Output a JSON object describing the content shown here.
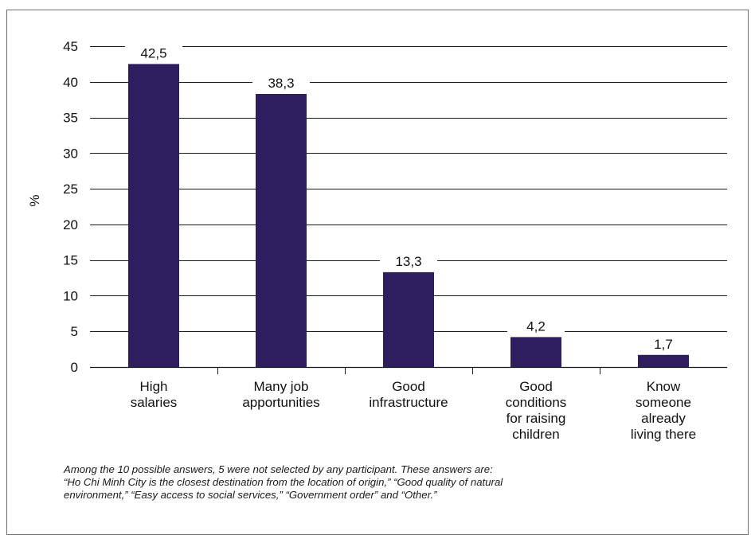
{
  "chart_data": {
    "type": "bar",
    "ylabel": "%",
    "xlabel": "",
    "ylim": [
      0,
      45
    ],
    "yticks": [
      0,
      5,
      10,
      15,
      20,
      25,
      30,
      35,
      40,
      45
    ],
    "grid": true,
    "categories": [
      [
        "High",
        "salaries"
      ],
      [
        "Many job",
        "apportunities"
      ],
      [
        "Good",
        "infrastructure"
      ],
      [
        "Good",
        "conditions",
        "for raising",
        "children"
      ],
      [
        "Know",
        "someone",
        "already",
        "living there"
      ]
    ],
    "values": [
      42.5,
      38.3,
      13.3,
      4.2,
      1.7
    ],
    "data_labels": [
      "42,5",
      "38,3",
      "13,3",
      "4,2",
      "1,7"
    ],
    "tick_labels": [
      "0",
      "5",
      "10",
      "15",
      "20",
      "25",
      "30",
      "35",
      "40",
      "45"
    ],
    "colors": {
      "bar": "#2e1d5f",
      "grid": "#1a1a1a",
      "text": "#111111"
    }
  },
  "note": {
    "lines": [
      "Among the 10 possible answers, 5 were not selected by any participant. These answers are:",
      "“Ho Chi Minh City is the closest destination from the location of origin,” “Good quality of natural",
      "environment,” “Easy access to social services,” “Government order” and “Other.”"
    ]
  }
}
